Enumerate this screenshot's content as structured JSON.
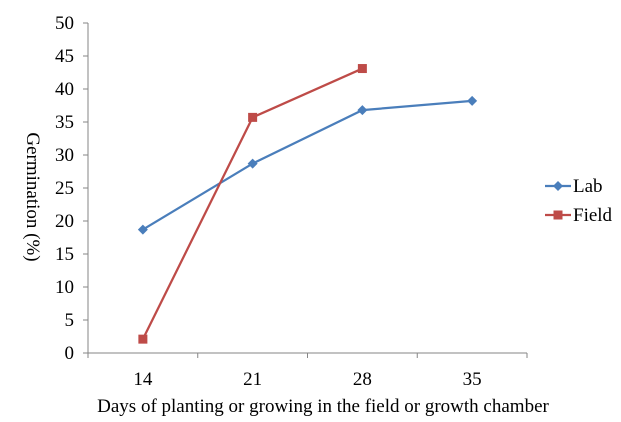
{
  "chart_data": {
    "type": "line",
    "categories": [
      "14",
      "21",
      "28",
      "35"
    ],
    "series": [
      {
        "name": "Lab",
        "values": [
          18.7,
          28.7,
          36.8,
          38.2
        ],
        "color": "#4a7ebb",
        "marker": "diamond"
      },
      {
        "name": "Field",
        "values": [
          2.1,
          35.7,
          43.1,
          null
        ],
        "color": "#be4b48",
        "marker": "square"
      }
    ],
    "title": "",
    "xlabel": "Days of planting or growing in the field or growth chamber",
    "ylabel": "Germination (%)",
    "ylim": [
      0,
      50
    ],
    "yticks": [
      "0",
      "5",
      "10",
      "15",
      "20",
      "25",
      "30",
      "35",
      "40",
      "45",
      "50"
    ],
    "grid": false,
    "legend_position": "right"
  }
}
